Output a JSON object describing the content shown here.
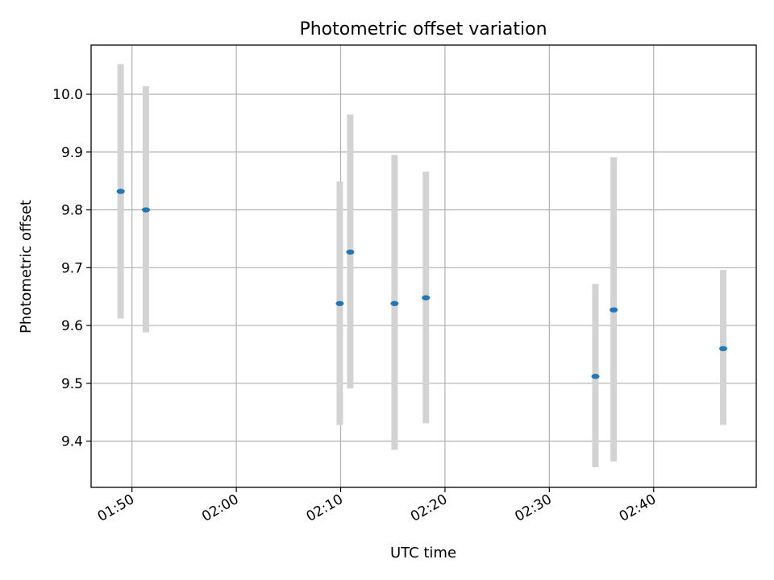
{
  "chart_data": {
    "type": "scatter",
    "title": "Photometric offset variation",
    "xlabel": "UTC time",
    "ylabel": "Photometric offset",
    "x_ticks": [
      "01:50",
      "02:00",
      "02:10",
      "02:20",
      "02:30",
      "02:40"
    ],
    "y_ticks": [
      "9.4",
      "9.5",
      "9.6",
      "9.7",
      "9.8",
      "9.9",
      "10.0"
    ],
    "xlim": [
      "01:46:05",
      "02:49:50"
    ],
    "ylim": [
      9.32,
      10.085
    ],
    "grid": true,
    "series": [
      {
        "x": [
          "01:48:55",
          "01:51:20",
          "02:09:55",
          "02:10:55",
          "02:15:10",
          "02:18:10",
          "02:34:25",
          "02:36:10",
          "02:46:40"
        ],
        "y": [
          9.832,
          9.8,
          9.638,
          9.727,
          9.638,
          9.648,
          9.512,
          9.627,
          9.56
        ],
        "err_low": [
          9.612,
          9.588,
          9.428,
          9.491,
          9.385,
          9.431,
          9.355,
          9.365,
          9.428
        ],
        "err_high": [
          10.052,
          10.014,
          9.849,
          9.965,
          9.895,
          9.866,
          9.672,
          9.891,
          9.696
        ]
      }
    ],
    "colors": {
      "marker": "#1f77b4",
      "errorbar": "#d3d3d3",
      "grid": "#b0b0b0"
    }
  }
}
